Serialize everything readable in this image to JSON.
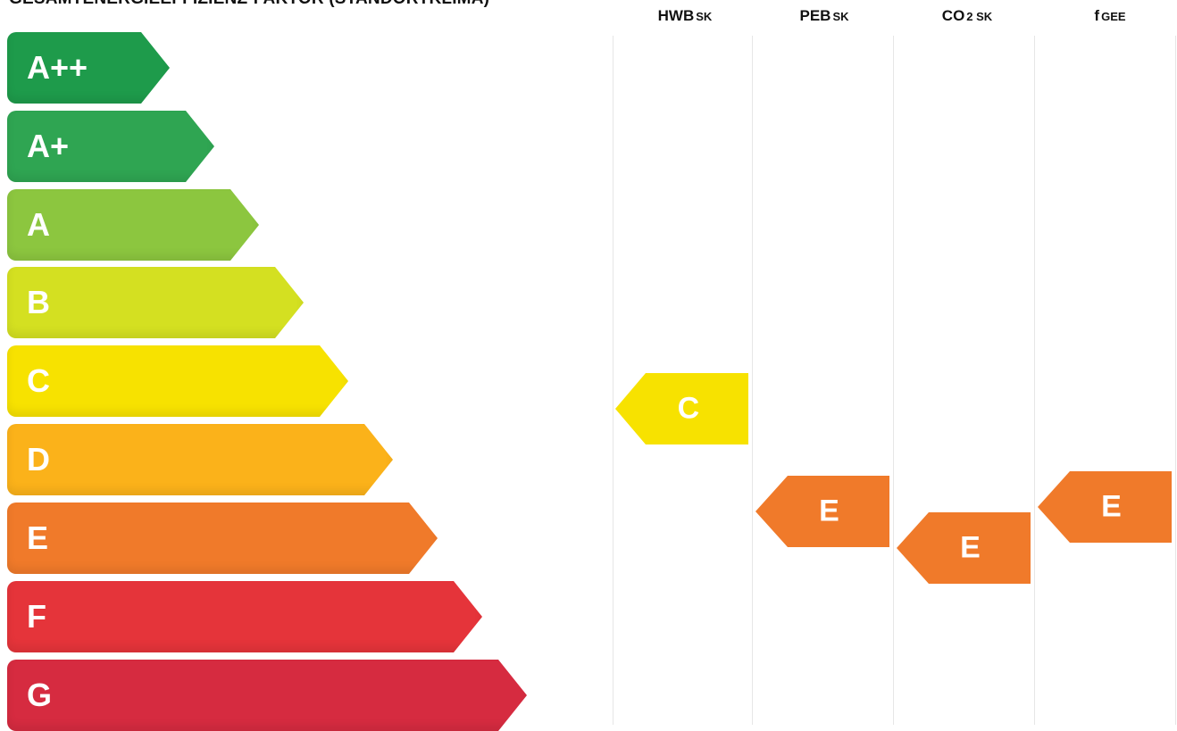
{
  "title": "GESAMTENERGIEEFFIZIENZ-FAKTOR (STANDORTKLIMA)",
  "columns": [
    {
      "main": "HWB",
      "sub": "SK"
    },
    {
      "main": "PEB",
      "sub": "SK"
    },
    {
      "main": "CO",
      "sub": "2 SK"
    },
    {
      "main": "f",
      "sub": "GEE"
    }
  ],
  "classes": [
    {
      "label": "A++",
      "color": "#1e9b4b"
    },
    {
      "label": "A+",
      "color": "#2fa552"
    },
    {
      "label": "A",
      "color": "#8cc63f"
    },
    {
      "label": "B",
      "color": "#d4e021"
    },
    {
      "label": "C",
      "color": "#f7e200"
    },
    {
      "label": "D",
      "color": "#fbb21a"
    },
    {
      "label": "E",
      "color": "#f07a2a"
    },
    {
      "label": "F",
      "color": "#e5343a"
    },
    {
      "label": "G",
      "color": "#d62b40"
    }
  ],
  "ratings": {
    "hwb": {
      "value": "C",
      "color": "#f7e200"
    },
    "peb": {
      "value": "E",
      "color": "#f07a2a"
    },
    "co2": {
      "value": "E",
      "color": "#f07a2a"
    },
    "fgee": {
      "value": "E",
      "color": "#f07a2a"
    }
  }
}
